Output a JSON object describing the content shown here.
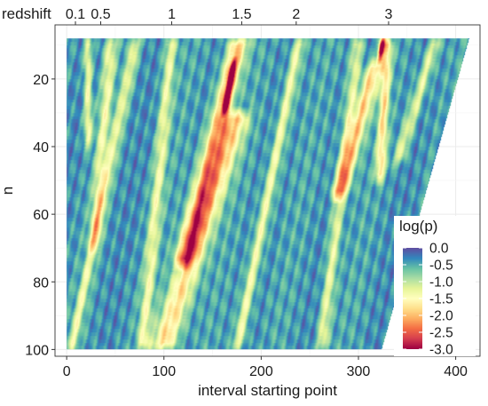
{
  "chart_data": {
    "type": "heatmap",
    "xlabel": "interval starting point",
    "ylabel": "n",
    "xlim": [
      -12,
      425
    ],
    "ylim": [
      4,
      102
    ],
    "y_reversed": true,
    "grid": true,
    "x_ticks": [
      0,
      100,
      200,
      300,
      400
    ],
    "y_ticks": [
      20,
      40,
      60,
      80,
      100
    ],
    "secondary_x_axis": {
      "position": "top",
      "label": "redshift",
      "ticks": [
        {
          "label": "0.1",
          "x": 9
        },
        {
          "label": "0.5",
          "x": 35
        },
        {
          "label": "1",
          "x": 108
        },
        {
          "label": "1.5",
          "x": 180
        },
        {
          "label": "2",
          "x": 236
        },
        {
          "label": "3",
          "x": 331
        }
      ]
    },
    "data_region": {
      "n_range": [
        8,
        100
      ],
      "start_min": 0,
      "start_max_at_top": 414,
      "start_max_at_bottom": 324
    },
    "legend": {
      "title": "log(p)",
      "placement": "right-inside",
      "range": [
        -3.0,
        0.0
      ],
      "ticks": [
        "0.0",
        "-0.5",
        "-1.0",
        "-1.5",
        "-2.0",
        "-2.5",
        "-3.0"
      ],
      "colors": [
        "#9e0142",
        "#d53e4f",
        "#f46d43",
        "#fdae61",
        "#fee08b",
        "#ffffbf",
        "#e6f598",
        "#abdda4",
        "#66c2a5",
        "#3288bd",
        "#5e4fa2"
      ]
    },
    "features": [
      {
        "x_top": 22,
        "x_bottom": 22,
        "n_from": 8,
        "n_to": 40,
        "width": 4,
        "min_logp": -1.0
      },
      {
        "x_top": 46,
        "x_bottom": 28,
        "n_from": 8,
        "n_to": 70,
        "width": 6,
        "min_logp": -0.9
      },
      {
        "x_top": 72,
        "x_bottom": 5,
        "n_from": 8,
        "n_to": 100,
        "width": 5,
        "min_logp": -0.9
      },
      {
        "x_top": 108,
        "x_bottom": 78,
        "n_from": 8,
        "n_to": 100,
        "width": 6,
        "min_logp": -0.9
      },
      {
        "x_top": 176,
        "x_bottom": 98,
        "n_from": 30,
        "n_to": 100,
        "width": 13,
        "min_logp": -1.45
      },
      {
        "x_top": 178,
        "x_bottom": 120,
        "n_from": 8,
        "n_to": 75,
        "width": 10,
        "min_logp": -1.6
      },
      {
        "x_top": 172,
        "x_bottom": 162,
        "n_from": 15,
        "n_to": 30,
        "width": 3,
        "min_logp": -2.4
      },
      {
        "x_top": 240,
        "x_bottom": 175,
        "n_from": 8,
        "n_to": 100,
        "width": 6,
        "min_logp": -1.0
      },
      {
        "x_top": 300,
        "x_bottom": 262,
        "n_from": 8,
        "n_to": 100,
        "width": 6,
        "min_logp": -0.9
      },
      {
        "x_top": 318,
        "x_bottom": 280,
        "n_from": 15,
        "n_to": 55,
        "width": 8,
        "min_logp": -1.5
      },
      {
        "x_top": 330,
        "x_bottom": 322,
        "n_from": 8,
        "n_to": 50,
        "width": 5,
        "min_logp": -1.3
      },
      {
        "x_top": 325,
        "x_bottom": 322,
        "n_from": 8,
        "n_to": 14,
        "width": 3,
        "min_logp": -3.0
      },
      {
        "x_top": 380,
        "x_bottom": 340,
        "n_from": 8,
        "n_to": 45,
        "width": 6,
        "min_logp": -0.9
      }
    ]
  }
}
